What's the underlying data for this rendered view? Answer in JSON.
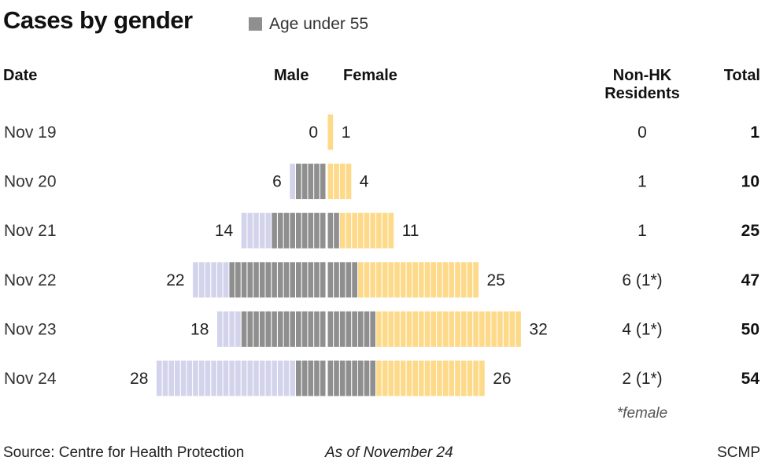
{
  "title": "Cases by gender",
  "legend": {
    "label": "Age under 55",
    "color": "#8f8f8f"
  },
  "headers": {
    "date": "Date",
    "male": "Male",
    "female": "Female",
    "non_hk_line1": "Non-HK",
    "non_hk_line2": "Residents",
    "total": "Total"
  },
  "footnote": "*female",
  "source": "Source: Centre for Health Protection",
  "as_of": "As of November 24",
  "credit": "SCMP",
  "colors": {
    "male_55_plus": "#d3d4ec",
    "under_55": "#8f8f8f",
    "female_55_plus": "#fdd98a"
  },
  "chart_data": {
    "type": "bar",
    "orientation": "horizontal",
    "layout": "back-to-back",
    "categories": [
      "Nov 19",
      "Nov 20",
      "Nov 21",
      "Nov 22",
      "Nov 23",
      "Nov 24"
    ],
    "series": [
      {
        "name": "Male",
        "values": [
          0,
          6,
          14,
          22,
          18,
          28
        ],
        "under_55": [
          0,
          5,
          9,
          16,
          14,
          5
        ]
      },
      {
        "name": "Female",
        "values": [
          1,
          4,
          11,
          25,
          32,
          26
        ],
        "under_55": [
          0,
          0,
          2,
          5,
          8,
          8
        ]
      }
    ],
    "non_hk_residents": [
      "0",
      "1",
      "1",
      "6 (1*)",
      "4 (1*)",
      "2 (1*)"
    ],
    "totals": [
      "1",
      "10",
      "25",
      "47",
      "50",
      "54"
    ]
  }
}
